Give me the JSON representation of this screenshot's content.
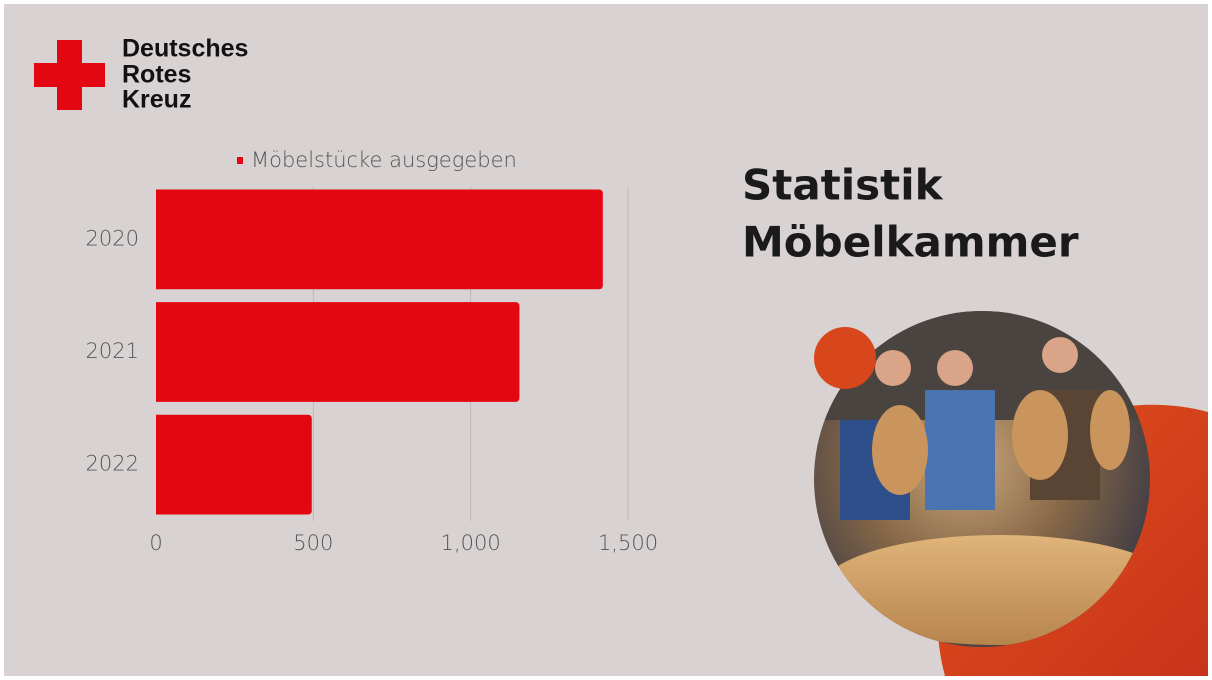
{
  "logo": {
    "lines": [
      "Deutsches",
      "Rotes",
      "Kreuz"
    ]
  },
  "heading": {
    "lines": [
      "Statistik",
      "Möbelkammer"
    ]
  },
  "chart_data": {
    "type": "hbar",
    "categories": [
      "2020",
      "2021",
      "2022"
    ],
    "series": [
      {
        "name": "Möbelstücke ausgegeben",
        "color": "#e30613",
        "values": [
          1420,
          1155,
          495
        ]
      }
    ],
    "xlim": [
      0,
      1500
    ],
    "xticks": [
      0,
      500,
      {
        "value": 1000,
        "label": "1,000"
      },
      {
        "value": 1500,
        "label": "1,500"
      }
    ],
    "grid": true,
    "legend": "top"
  }
}
